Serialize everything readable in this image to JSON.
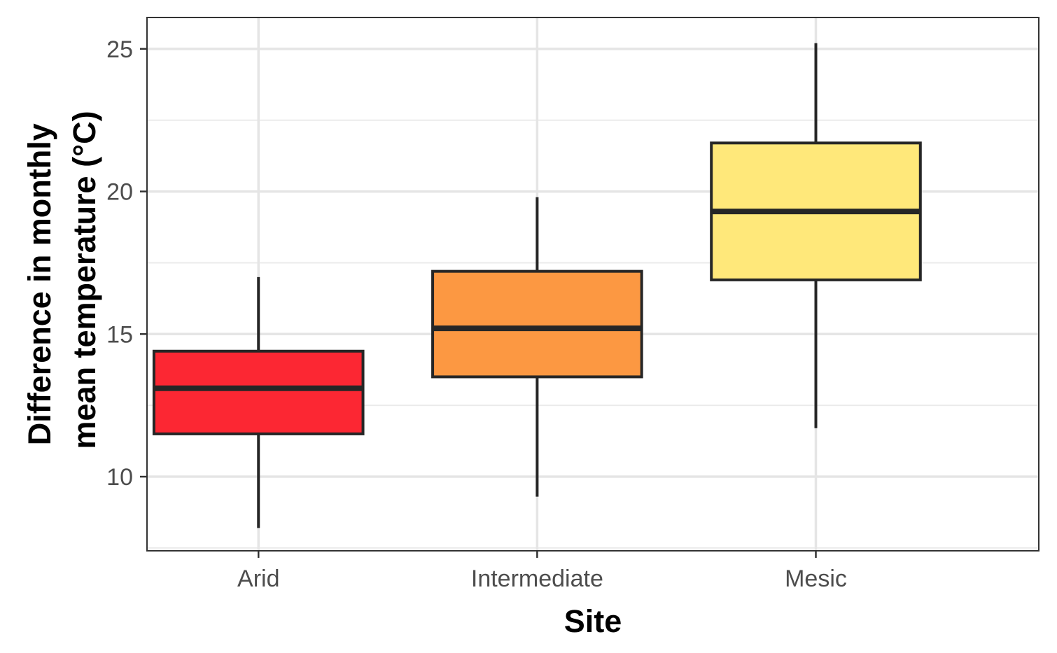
{
  "chart_data": {
    "type": "box",
    "title": "",
    "xlabel": "Site",
    "ylabel_lines": [
      "Difference in monthly",
      "mean temperature (°C)"
    ],
    "ylim": [
      7.4,
      26.1
    ],
    "yticks": [
      10,
      15,
      20,
      25
    ],
    "y_minor_ticks": [
      7.5,
      12.5,
      17.5,
      22.5
    ],
    "grid": true,
    "legend": "none",
    "categories": [
      "Arid",
      "Intermediate",
      "Mesic"
    ],
    "boxes": [
      {
        "category": "Arid",
        "whisker_low": 8.2,
        "q1": 11.5,
        "median": 13.1,
        "q3": 14.4,
        "whisker_high": 17.0,
        "color": "#fc2733"
      },
      {
        "category": "Intermediate",
        "whisker_low": 9.3,
        "q1": 13.5,
        "median": 15.2,
        "q3": 17.2,
        "whisker_high": 19.8,
        "color": "#fc9842"
      },
      {
        "category": "Mesic",
        "whisker_low": 11.7,
        "q1": 16.9,
        "median": 19.3,
        "q3": 21.7,
        "whisker_high": 25.2,
        "color": "#ffe87a"
      }
    ]
  }
}
